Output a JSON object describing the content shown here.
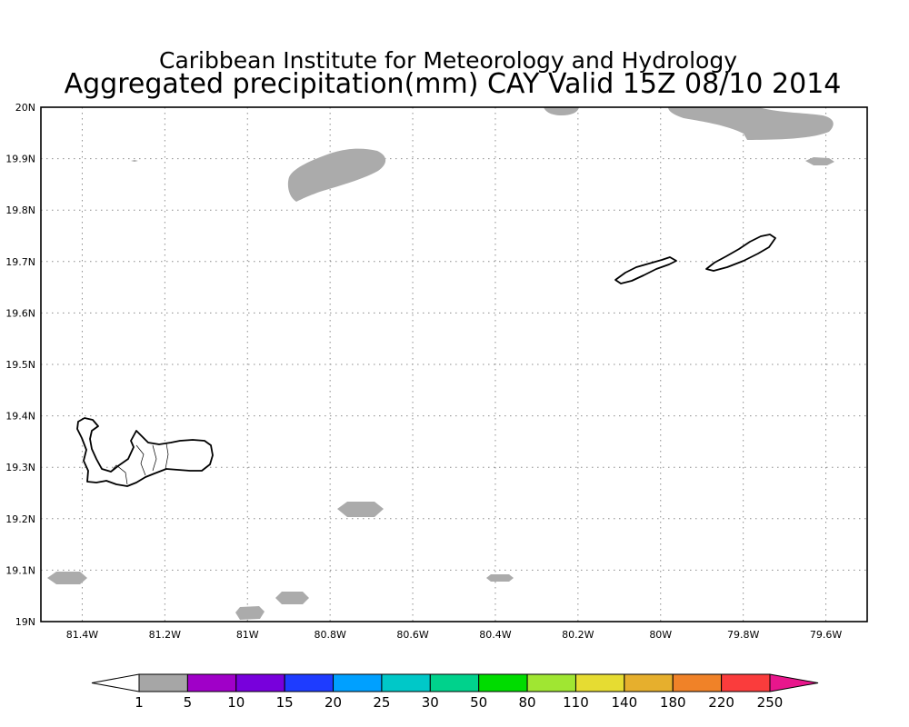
{
  "header": {
    "institution": "Caribbean Institute for Meteorology and Hydrology",
    "product_title": "Aggregated precipitation(mm) CAY Valid 15Z 08/10 2014"
  },
  "map": {
    "lon_range": [
      -81.5,
      -79.5
    ],
    "lat_range": [
      19.0,
      20.0
    ],
    "lon_ticks": [
      {
        "value": -81.4,
        "label": "81.4W"
      },
      {
        "value": -81.2,
        "label": "81.2W"
      },
      {
        "value": -81.0,
        "label": "81W"
      },
      {
        "value": -80.8,
        "label": "80.8W"
      },
      {
        "value": -80.6,
        "label": "80.6W"
      },
      {
        "value": -80.4,
        "label": "80.4W"
      },
      {
        "value": -80.2,
        "label": "80.2W"
      },
      {
        "value": -80.0,
        "label": "80W"
      },
      {
        "value": -79.8,
        "label": "79.8W"
      },
      {
        "value": -79.6,
        "label": "79.6W"
      }
    ],
    "lat_ticks": [
      {
        "value": 20.0,
        "label": "20N"
      },
      {
        "value": 19.9,
        "label": "19.9N"
      },
      {
        "value": 19.8,
        "label": "19.8N"
      },
      {
        "value": 19.7,
        "label": "19.7N"
      },
      {
        "value": 19.6,
        "label": "19.6N"
      },
      {
        "value": 19.5,
        "label": "19.5N"
      },
      {
        "value": 19.4,
        "label": "19.4N"
      },
      {
        "value": 19.3,
        "label": "19.3N"
      },
      {
        "value": 19.2,
        "label": "19.2N"
      },
      {
        "value": 19.1,
        "label": "19.1N"
      },
      {
        "value": 19.0,
        "label": "19N"
      }
    ],
    "gridlines": true,
    "precip_fill_color": "#ababab"
  },
  "colorbar": {
    "below_min_color": "#ffffff",
    "above_max_color": "#e8168c",
    "colors": [
      "#a6a6a6",
      "#a000c8",
      "#7800dc",
      "#1e3cff",
      "#00a0ff",
      "#00c8c8",
      "#00d28c",
      "#00dc00",
      "#a0e632",
      "#e6dc32",
      "#e6af2d",
      "#f08228",
      "#fa3c3c"
    ],
    "labels": [
      "1",
      "5",
      "10",
      "15",
      "20",
      "25",
      "30",
      "50",
      "80",
      "110",
      "140",
      "180",
      "220",
      "250"
    ]
  }
}
